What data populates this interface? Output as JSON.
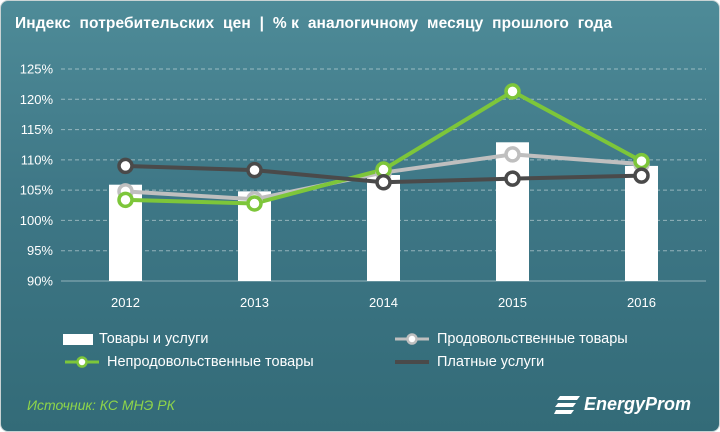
{
  "header": {
    "title": "Индекс  потребительских  цен  |  % к  аналогичному  месяцу  прошлого  года"
  },
  "footer": {
    "source": "Источник: КС МНЭ РК",
    "logo_text": "EnergyProm"
  },
  "colors": {
    "bar": "#ffffff",
    "food": "#bfbfbf",
    "nonfood": "#7dc63a",
    "services": "#4a4a4a"
  },
  "chart_data": {
    "type": "bar",
    "categories": [
      "2012",
      "2013",
      "2014",
      "2015",
      "2016"
    ],
    "ylim": [
      90,
      125
    ],
    "yticks": [
      90,
      95,
      100,
      105,
      110,
      115,
      120,
      125
    ],
    "ytick_labels": [
      "90%",
      "95%",
      "100%",
      "105%",
      "110%",
      "115%",
      "120%",
      "125%"
    ],
    "grid": true,
    "legend_position": "bottom",
    "series": [
      {
        "name": "Товары и услуги",
        "kind": "bar",
        "color": "#ffffff",
        "values": [
          105.9,
          104.8,
          107.5,
          112.9,
          109.0
        ]
      },
      {
        "name": "Продовольственные товары",
        "kind": "line",
        "color": "#bfbfbf",
        "values": [
          104.8,
          103.5,
          107.9,
          110.9,
          109.3
        ]
      },
      {
        "name": "Непродовольственные товары",
        "kind": "line",
        "color": "#7dc63a",
        "values": [
          103.4,
          102.8,
          108.4,
          121.3,
          109.8
        ]
      },
      {
        "name": "Платные услуги",
        "kind": "line",
        "color": "#4a4a4a",
        "values": [
          109.0,
          108.3,
          106.3,
          106.9,
          107.4
        ]
      }
    ]
  }
}
